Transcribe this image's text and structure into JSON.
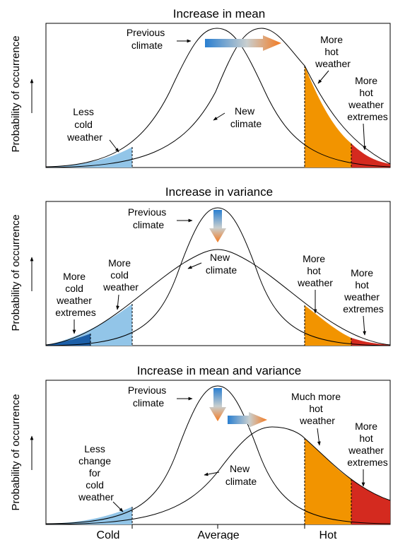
{
  "x_axis": {
    "cold": "Cold",
    "average": "Average",
    "hot": "Hot"
  },
  "panels": [
    {
      "title": "Increase in mean",
      "ylabel": "Probability of occurrence",
      "previous_climate": [
        "Previous",
        "climate"
      ],
      "new_climate": [
        "New",
        "climate"
      ],
      "left_annotations": [
        {
          "lines": [
            "Less",
            "cold",
            "weather"
          ]
        }
      ],
      "right_annotations": [
        {
          "lines": [
            "More",
            "hot",
            "weather"
          ]
        },
        {
          "lines": [
            "More",
            "hot",
            "weather",
            "extremes"
          ]
        }
      ]
    },
    {
      "title": "Increase in variance",
      "ylabel": "Probability of occurrence",
      "previous_climate": [
        "Previous",
        "climate"
      ],
      "new_climate": [
        "New",
        "climate"
      ],
      "left_annotations": [
        {
          "lines": [
            "More",
            "cold",
            "weather",
            "extremes"
          ]
        },
        {
          "lines": [
            "More",
            "cold",
            "weather"
          ]
        }
      ],
      "right_annotations": [
        {
          "lines": [
            "More",
            "hot",
            "weather"
          ]
        },
        {
          "lines": [
            "More",
            "hot",
            "weather",
            "extremes"
          ]
        }
      ]
    },
    {
      "title": "Increase in mean and variance",
      "ylabel": "Probability of occurrence",
      "previous_climate": [
        "Previous",
        "climate"
      ],
      "new_climate": [
        "New",
        "climate"
      ],
      "left_annotations": [
        {
          "lines": [
            "Less",
            "change",
            "for",
            "cold",
            "weather"
          ]
        }
      ],
      "right_annotations": [
        {
          "lines": [
            "Much more",
            "hot",
            "weather"
          ]
        },
        {
          "lines": [
            "More",
            "hot",
            "weather",
            "extremes"
          ]
        }
      ]
    }
  ],
  "colors": {
    "cold_light": "#92c5e8",
    "cold_dark": "#1c5fa8",
    "hot": "#f29400",
    "hot_extreme": "#d42a1f",
    "arrow_start": "#2a7fd0",
    "arrow_end": "#f47a20"
  }
}
